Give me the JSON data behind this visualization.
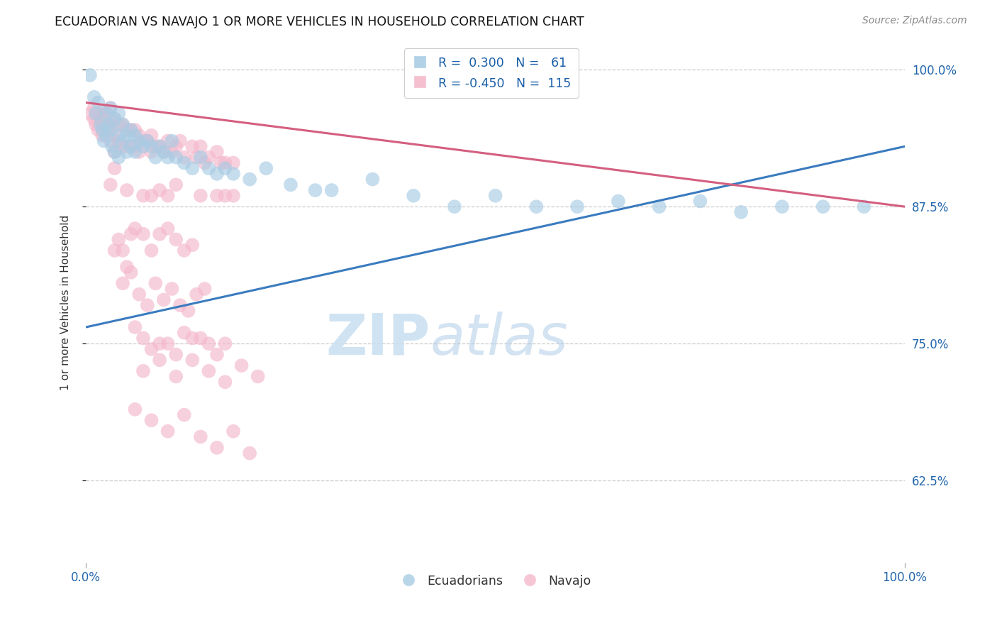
{
  "title": "ECUADORIAN VS NAVAJO 1 OR MORE VEHICLES IN HOUSEHOLD CORRELATION CHART",
  "source": "Source: ZipAtlas.com",
  "ylabel": "1 or more Vehicles in Household",
  "watermark_zip": "ZIP",
  "watermark_atlas": "atlas",
  "legend_blue_label": "Ecuadorians",
  "legend_pink_label": "Navajo",
  "blue_color": "#a8cce4",
  "pink_color": "#f4b8cb",
  "blue_line_color": "#3a7bbf",
  "pink_line_color": "#d45f80",
  "blue_scatter": [
    [
      0.5,
      99.5
    ],
    [
      1.0,
      97.5
    ],
    [
      1.2,
      96.0
    ],
    [
      1.5,
      97.0
    ],
    [
      1.8,
      95.0
    ],
    [
      2.0,
      94.5
    ],
    [
      2.2,
      93.5
    ],
    [
      2.5,
      96.0
    ],
    [
      2.5,
      94.0
    ],
    [
      2.8,
      95.0
    ],
    [
      3.0,
      96.5
    ],
    [
      3.0,
      94.5
    ],
    [
      3.2,
      93.0
    ],
    [
      3.5,
      95.5
    ],
    [
      3.5,
      92.5
    ],
    [
      4.0,
      96.0
    ],
    [
      4.0,
      94.0
    ],
    [
      4.0,
      92.0
    ],
    [
      4.5,
      95.0
    ],
    [
      4.5,
      93.5
    ],
    [
      5.0,
      94.0
    ],
    [
      5.0,
      92.5
    ],
    [
      5.5,
      94.5
    ],
    [
      5.5,
      93.0
    ],
    [
      6.0,
      94.0
    ],
    [
      6.0,
      92.5
    ],
    [
      6.5,
      93.5
    ],
    [
      7.0,
      93.0
    ],
    [
      7.5,
      93.5
    ],
    [
      8.0,
      93.0
    ],
    [
      8.5,
      92.0
    ],
    [
      9.0,
      93.0
    ],
    [
      9.5,
      92.5
    ],
    [
      10.0,
      92.0
    ],
    [
      10.5,
      93.5
    ],
    [
      11.0,
      92.0
    ],
    [
      12.0,
      91.5
    ],
    [
      13.0,
      91.0
    ],
    [
      14.0,
      92.0
    ],
    [
      15.0,
      91.0
    ],
    [
      16.0,
      90.5
    ],
    [
      17.0,
      91.0
    ],
    [
      18.0,
      90.5
    ],
    [
      20.0,
      90.0
    ],
    [
      22.0,
      91.0
    ],
    [
      25.0,
      89.5
    ],
    [
      28.0,
      89.0
    ],
    [
      30.0,
      89.0
    ],
    [
      35.0,
      90.0
    ],
    [
      40.0,
      88.5
    ],
    [
      45.0,
      87.5
    ],
    [
      50.0,
      88.5
    ],
    [
      55.0,
      87.5
    ],
    [
      60.0,
      87.5
    ],
    [
      65.0,
      88.0
    ],
    [
      70.0,
      87.5
    ],
    [
      75.0,
      88.0
    ],
    [
      80.0,
      87.0
    ],
    [
      85.0,
      87.5
    ],
    [
      90.0,
      87.5
    ],
    [
      95.0,
      87.5
    ]
  ],
  "pink_scatter": [
    [
      0.5,
      96.0
    ],
    [
      1.0,
      96.5
    ],
    [
      1.0,
      95.5
    ],
    [
      1.2,
      95.0
    ],
    [
      1.5,
      96.0
    ],
    [
      1.5,
      94.5
    ],
    [
      1.8,
      95.5
    ],
    [
      2.0,
      96.0
    ],
    [
      2.0,
      94.0
    ],
    [
      2.2,
      95.5
    ],
    [
      2.5,
      96.0
    ],
    [
      2.5,
      94.5
    ],
    [
      2.8,
      95.0
    ],
    [
      3.0,
      96.5
    ],
    [
      3.0,
      95.0
    ],
    [
      3.0,
      93.5
    ],
    [
      3.5,
      95.5
    ],
    [
      3.5,
      94.0
    ],
    [
      3.5,
      92.5
    ],
    [
      4.0,
      95.0
    ],
    [
      4.0,
      93.5
    ],
    [
      4.5,
      95.0
    ],
    [
      4.5,
      93.0
    ],
    [
      5.0,
      94.5
    ],
    [
      5.0,
      93.0
    ],
    [
      5.5,
      94.5
    ],
    [
      5.5,
      93.0
    ],
    [
      6.0,
      94.5
    ],
    [
      6.0,
      93.0
    ],
    [
      6.5,
      94.0
    ],
    [
      6.5,
      92.5
    ],
    [
      7.0,
      93.5
    ],
    [
      7.5,
      93.5
    ],
    [
      8.0,
      94.0
    ],
    [
      8.0,
      92.5
    ],
    [
      8.5,
      93.0
    ],
    [
      9.0,
      93.0
    ],
    [
      9.5,
      92.5
    ],
    [
      10.0,
      93.5
    ],
    [
      10.5,
      92.5
    ],
    [
      11.0,
      93.0
    ],
    [
      11.5,
      93.5
    ],
    [
      12.0,
      92.0
    ],
    [
      13.0,
      93.0
    ],
    [
      13.5,
      92.0
    ],
    [
      14.0,
      93.0
    ],
    [
      14.5,
      91.5
    ],
    [
      15.0,
      92.0
    ],
    [
      16.0,
      92.5
    ],
    [
      16.5,
      91.5
    ],
    [
      17.0,
      91.5
    ],
    [
      18.0,
      91.5
    ],
    [
      3.0,
      89.5
    ],
    [
      3.5,
      91.0
    ],
    [
      5.0,
      89.0
    ],
    [
      7.0,
      88.5
    ],
    [
      8.0,
      88.5
    ],
    [
      9.0,
      89.0
    ],
    [
      10.0,
      88.5
    ],
    [
      11.0,
      89.5
    ],
    [
      14.0,
      88.5
    ],
    [
      16.0,
      88.5
    ],
    [
      17.0,
      88.5
    ],
    [
      18.0,
      88.5
    ],
    [
      3.5,
      83.5
    ],
    [
      4.0,
      84.5
    ],
    [
      4.5,
      83.5
    ],
    [
      5.5,
      85.0
    ],
    [
      6.0,
      85.5
    ],
    [
      7.0,
      85.0
    ],
    [
      8.0,
      83.5
    ],
    [
      9.0,
      85.0
    ],
    [
      10.0,
      85.5
    ],
    [
      11.0,
      84.5
    ],
    [
      12.0,
      83.5
    ],
    [
      13.0,
      84.0
    ],
    [
      4.5,
      80.5
    ],
    [
      5.0,
      82.0
    ],
    [
      5.5,
      81.5
    ],
    [
      6.5,
      79.5
    ],
    [
      7.5,
      78.5
    ],
    [
      8.5,
      80.5
    ],
    [
      9.5,
      79.0
    ],
    [
      10.5,
      80.0
    ],
    [
      11.5,
      78.5
    ],
    [
      12.5,
      78.0
    ],
    [
      13.5,
      79.5
    ],
    [
      14.5,
      80.0
    ],
    [
      6.0,
      76.5
    ],
    [
      7.0,
      75.5
    ],
    [
      8.0,
      74.5
    ],
    [
      9.0,
      75.0
    ],
    [
      10.0,
      75.0
    ],
    [
      11.0,
      74.0
    ],
    [
      12.0,
      76.0
    ],
    [
      13.0,
      75.5
    ],
    [
      14.0,
      75.5
    ],
    [
      15.0,
      75.0
    ],
    [
      16.0,
      74.0
    ],
    [
      17.0,
      75.0
    ],
    [
      7.0,
      72.5
    ],
    [
      9.0,
      73.5
    ],
    [
      11.0,
      72.0
    ],
    [
      13.0,
      73.5
    ],
    [
      15.0,
      72.5
    ],
    [
      17.0,
      71.5
    ],
    [
      19.0,
      73.0
    ],
    [
      21.0,
      72.0
    ],
    [
      6.0,
      69.0
    ],
    [
      8.0,
      68.0
    ],
    [
      10.0,
      67.0
    ],
    [
      12.0,
      68.5
    ],
    [
      14.0,
      66.5
    ],
    [
      16.0,
      65.5
    ],
    [
      18.0,
      67.0
    ],
    [
      20.0,
      65.0
    ]
  ],
  "xlim": [
    0.0,
    100.0
  ],
  "ylim": [
    55.0,
    102.5
  ],
  "y_tick_vals": [
    62.5,
    75.0,
    87.5,
    100.0
  ],
  "y_tick_labels": [
    "62.5%",
    "75.0%",
    "87.5%",
    "100.0%"
  ],
  "blue_trend": [
    0.0,
    76.5,
    100.0,
    93.0
  ],
  "pink_trend": [
    0.0,
    97.0,
    100.0,
    87.5
  ]
}
